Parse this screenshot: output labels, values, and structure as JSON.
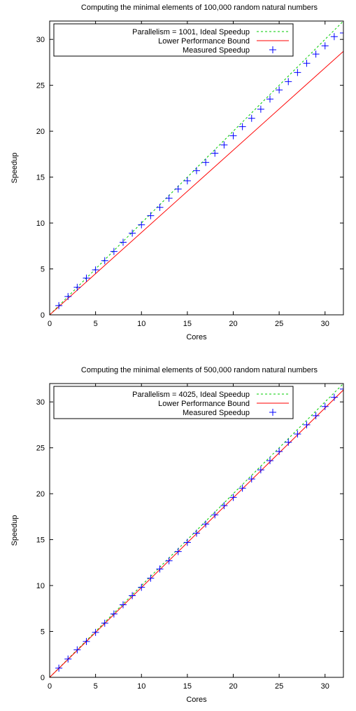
{
  "chart_data": [
    {
      "type": "line",
      "title": "Computing the minimal elements of 100,000 random natural numbers",
      "xlabel": "Cores",
      "ylabel": "Speedup",
      "xlim": [
        0,
        32
      ],
      "ylim": [
        0,
        32
      ],
      "xticks": [
        0,
        5,
        10,
        15,
        20,
        25,
        30
      ],
      "yticks": [
        0,
        5,
        10,
        15,
        20,
        25,
        30
      ],
      "grid": false,
      "legend_position": "top-left",
      "series": [
        {
          "name": "Parallelism = 1001, Ideal Speedup",
          "style": "dashed-line",
          "color": "#00cc00",
          "x": [
            0,
            32
          ],
          "y": [
            0,
            32
          ]
        },
        {
          "name": "Lower Performance Bound",
          "style": "line",
          "color": "#ff0000",
          "x": [
            0,
            32
          ],
          "y": [
            0,
            28.7
          ]
        },
        {
          "name": "Measured Speedup",
          "style": "plus-marker",
          "color": "#0000ff",
          "x": [
            1,
            2,
            3,
            4,
            5,
            6,
            7,
            8,
            9,
            10,
            11,
            12,
            13,
            14,
            15,
            16,
            17,
            18,
            19,
            20,
            21,
            22,
            23,
            24,
            25,
            26,
            27,
            28,
            29,
            30,
            31,
            32
          ],
          "y": [
            1,
            2,
            3,
            4,
            4.9,
            5.9,
            6.9,
            7.9,
            8.9,
            9.8,
            10.8,
            11.7,
            12.7,
            13.7,
            14.6,
            15.7,
            16.6,
            17.6,
            18.5,
            19.5,
            20.5,
            21.4,
            22.4,
            23.5,
            24.5,
            25.4,
            26.4,
            27.4,
            28.4,
            29.3,
            30.3,
            30.7
          ]
        }
      ]
    },
    {
      "type": "line",
      "title": "Computing the minimal elements of 500,000 random natural numbers",
      "xlabel": "Cores",
      "ylabel": "Speedup",
      "xlim": [
        0,
        32
      ],
      "ylim": [
        0,
        32
      ],
      "xticks": [
        0,
        5,
        10,
        15,
        20,
        25,
        30
      ],
      "yticks": [
        0,
        5,
        10,
        15,
        20,
        25,
        30
      ],
      "grid": false,
      "legend_position": "top-left",
      "series": [
        {
          "name": "Parallelism = 4025, Ideal Speedup",
          "style": "dashed-line",
          "color": "#00cc00",
          "x": [
            0,
            32
          ],
          "y": [
            0,
            32
          ]
        },
        {
          "name": "Lower Performance Bound",
          "style": "line",
          "color": "#ff0000",
          "x": [
            0,
            32
          ],
          "y": [
            0,
            31.3
          ]
        },
        {
          "name": "Measured Speedup",
          "style": "plus-marker",
          "color": "#0000ff",
          "x": [
            1,
            2,
            3,
            4,
            5,
            6,
            7,
            8,
            9,
            10,
            11,
            12,
            13,
            14,
            15,
            16,
            17,
            18,
            19,
            20,
            21,
            22,
            23,
            24,
            25,
            26,
            27,
            28,
            29,
            30,
            31,
            32
          ],
          "y": [
            1,
            2,
            3,
            3.9,
            4.9,
            5.9,
            6.9,
            7.9,
            8.9,
            9.8,
            10.8,
            11.8,
            12.7,
            13.7,
            14.7,
            15.7,
            16.7,
            17.7,
            18.7,
            19.6,
            20.6,
            21.6,
            22.6,
            23.6,
            24.6,
            25.6,
            26.5,
            27.5,
            28.5,
            29.5,
            30.5,
            31.4
          ]
        }
      ]
    }
  ]
}
